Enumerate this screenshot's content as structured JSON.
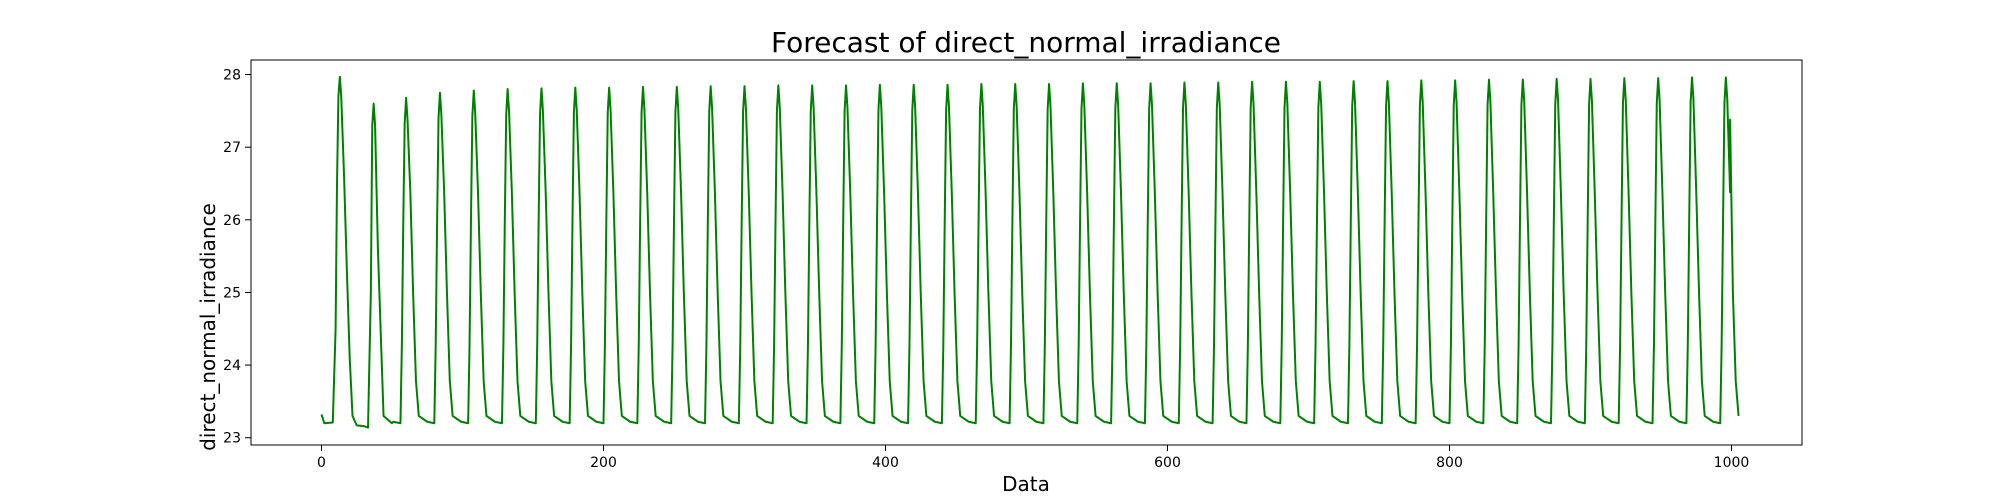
{
  "chart_data": {
    "type": "line",
    "title": "Forecast of direct_normal_irradiance",
    "xlabel": "Data",
    "ylabel": "direct_normal_irradiance",
    "xlim": [
      -50,
      1050
    ],
    "ylim": [
      22.9,
      28.2
    ],
    "xticks": [
      0,
      200,
      400,
      600,
      800,
      1000
    ],
    "yticks": [
      23,
      24,
      25,
      26,
      27,
      28
    ],
    "grid": false,
    "legend": "none",
    "series": [
      {
        "color": "#008000",
        "x_start": 0,
        "x_end": 999,
        "period": 24,
        "low": 23.18,
        "high": 27.92,
        "values_sampled": [
          [
            0,
            23.32
          ],
          [
            2,
            23.2
          ],
          [
            8,
            23.21
          ],
          [
            10,
            24.5
          ],
          [
            11,
            26.5
          ],
          [
            12,
            27.7
          ],
          [
            13,
            27.97
          ],
          [
            14,
            27.7
          ],
          [
            16,
            26.6
          ],
          [
            18,
            25.3
          ],
          [
            20,
            24.1
          ],
          [
            22,
            23.3
          ],
          [
            25,
            23.17
          ],
          [
            30,
            23.16
          ],
          [
            33,
            23.14
          ],
          [
            35,
            25.0
          ],
          [
            36,
            27.3
          ],
          [
            37,
            27.6
          ],
          [
            38,
            27.3
          ],
          [
            40,
            25.6
          ],
          [
            44,
            23.3
          ],
          [
            50,
            23.2
          ],
          [
            60,
            27.68
          ],
          [
            84,
            27.75
          ],
          [
            108,
            27.78
          ],
          [
            132,
            27.8
          ],
          [
            156,
            27.81
          ],
          [
            180,
            27.82
          ],
          [
            204,
            27.82
          ],
          [
            228,
            27.83
          ],
          [
            252,
            27.83
          ],
          [
            276,
            27.84
          ],
          [
            300,
            27.84
          ],
          [
            324,
            27.85
          ],
          [
            348,
            27.85
          ],
          [
            372,
            27.85
          ],
          [
            396,
            27.86
          ],
          [
            420,
            27.86
          ],
          [
            444,
            27.86
          ],
          [
            468,
            27.87
          ],
          [
            492,
            27.87
          ],
          [
            516,
            27.87
          ],
          [
            540,
            27.88
          ],
          [
            564,
            27.88
          ],
          [
            588,
            27.88
          ],
          [
            612,
            27.89
          ],
          [
            636,
            27.89
          ],
          [
            660,
            27.9
          ],
          [
            684,
            27.9
          ],
          [
            708,
            27.9
          ],
          [
            732,
            27.91
          ],
          [
            756,
            27.91
          ],
          [
            780,
            27.92
          ],
          [
            804,
            27.92
          ],
          [
            828,
            27.93
          ],
          [
            852,
            27.93
          ],
          [
            876,
            27.94
          ],
          [
            900,
            27.94
          ],
          [
            924,
            27.95
          ],
          [
            948,
            27.95
          ],
          [
            972,
            27.96
          ],
          [
            996,
            27.96
          ],
          [
            999,
            27.38
          ]
        ]
      }
    ]
  }
}
